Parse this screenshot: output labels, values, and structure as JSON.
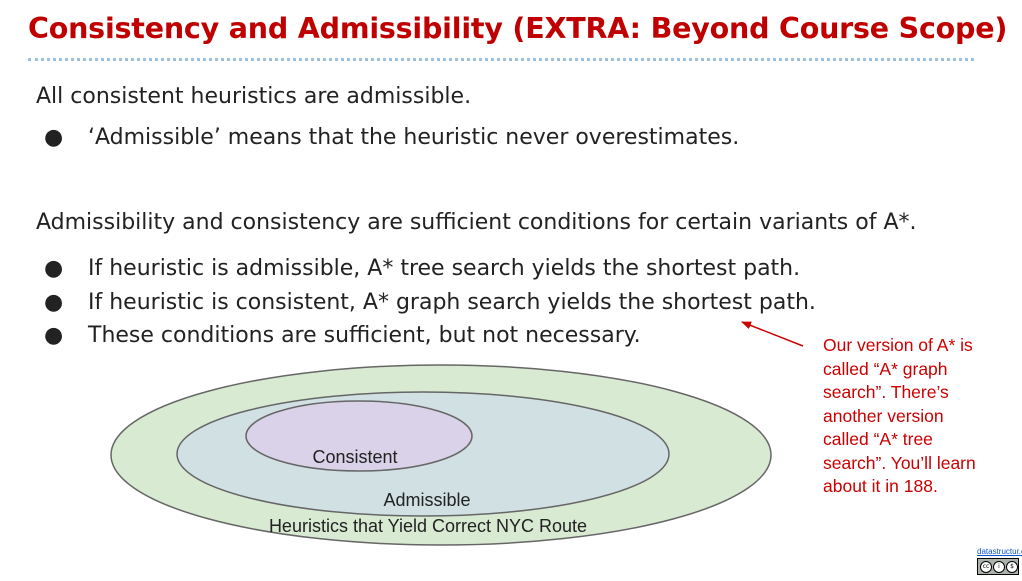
{
  "slide": {
    "title": "Consistency and Admissibility (EXTRA: Beyond Course Scope)",
    "colors": {
      "title": "#c00000",
      "note": "#cc0000",
      "rule": "#9bc0e4",
      "outer_ellipse": "#d9ead3",
      "middle_ellipse": "#d0e0e3",
      "inner_ellipse": "#d9d2e9"
    }
  },
  "section1": {
    "heading": "All consistent heuristics are admissible.",
    "bullets": [
      "‘Admissible’ means that the heuristic never overestimates."
    ]
  },
  "section2": {
    "heading": "Admissibility and consistency are sufficient conditions for certain variants of A*.",
    "bullets": [
      "If heuristic is admissible, A* tree search yields the shortest path.",
      "If heuristic is consistent, A* graph search yields the shortest path.",
      "These conditions are sufficient, but not necessary."
    ]
  },
  "bullet_symbol": "●",
  "note": {
    "lines": [
      "Our version of A* is",
      "called “A* graph",
      "search”. There’s",
      "another version",
      "called “A* tree",
      "search”. You’ll learn",
      "about it in 188."
    ]
  },
  "venn": {
    "inner_label": "Consistent",
    "middle_label": "Admissible",
    "outer_label": "Heuristics that Yield Correct NYC Route"
  },
  "footer": {
    "link_text": "datastructur.es",
    "license_icon": "cc-by-nc-sa-icon",
    "license_glyphs": [
      "cc",
      "i",
      "$",
      "o"
    ]
  }
}
